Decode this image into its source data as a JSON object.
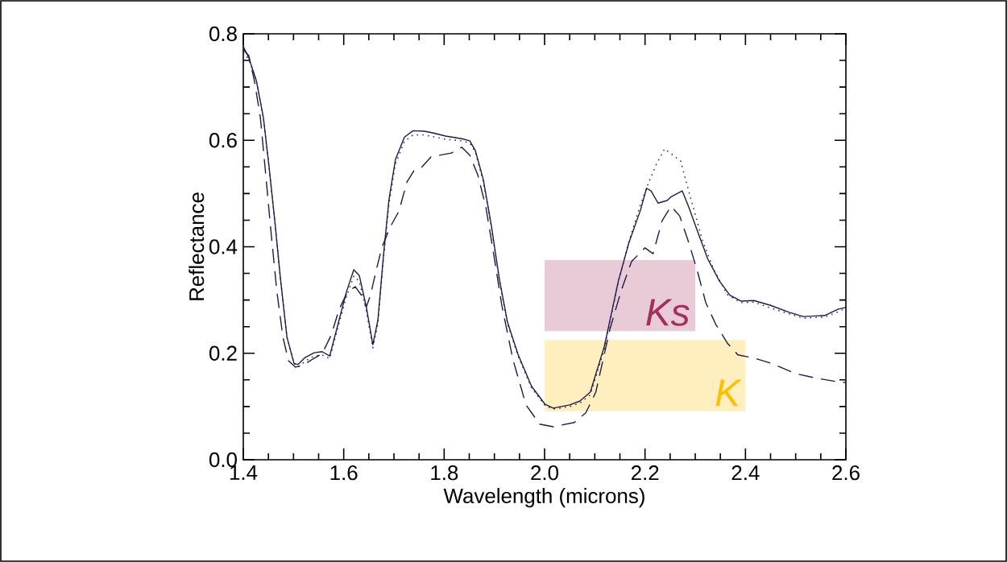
{
  "chart_data": {
    "type": "line",
    "xlabel": "Wavelength (microns)",
    "ylabel": "Reflectance",
    "xlim": [
      1.4,
      2.6
    ],
    "ylim": [
      0,
      0.8
    ],
    "xticks": [
      1.4,
      1.6,
      1.8,
      {
        "value": 2,
        "label": "2.0"
      },
      2.2,
      2.4,
      2.6
    ],
    "yticks": [
      {
        "value": 0,
        "label": "0.0"
      },
      0.2,
      0.4,
      0.6,
      0.8
    ],
    "grid": false,
    "marker": "none",
    "bands": [
      {
        "axis": "x",
        "from": 2.0,
        "to": 2.3,
        "label": "Ks",
        "color": "#e8cbd7"
      },
      {
        "axis": "x",
        "from": 2.0,
        "to": 2.4,
        "label": "K",
        "color": "#ffefbf"
      }
    ],
    "series": [
      {
        "color": "#1c1c4a",
        "line_style": "solid",
        "x": [
          1.4,
          1.411,
          1.426,
          1.44,
          1.451,
          1.463,
          1.474,
          1.487,
          1.501,
          1.509,
          1.523,
          1.541,
          1.557,
          1.572,
          1.589,
          1.605,
          1.62,
          1.631,
          1.645,
          1.658,
          1.668,
          1.679,
          1.69,
          1.703,
          1.721,
          1.738,
          1.761,
          1.777,
          1.803,
          1.835,
          1.851,
          1.862,
          1.878,
          1.894,
          1.91,
          1.926,
          1.947,
          1.974,
          2.001,
          2.017,
          2.05,
          2.07,
          2.091,
          2.119,
          2.147,
          2.168,
          2.191,
          2.203,
          2.212,
          2.226,
          2.244,
          2.252,
          2.274,
          2.287,
          2.305,
          2.325,
          2.348,
          2.369,
          2.391,
          2.417,
          2.45,
          2.487,
          2.515,
          2.558,
          2.585,
          2.6
        ],
        "values": [
          0.776,
          0.755,
          0.712,
          0.643,
          0.553,
          0.446,
          0.34,
          0.23,
          0.181,
          0.179,
          0.192,
          0.201,
          0.203,
          0.195,
          0.256,
          0.314,
          0.357,
          0.346,
          0.287,
          0.216,
          0.262,
          0.382,
          0.488,
          0.564,
          0.606,
          0.618,
          0.617,
          0.614,
          0.608,
          0.603,
          0.599,
          0.581,
          0.526,
          0.44,
          0.339,
          0.259,
          0.198,
          0.138,
          0.104,
          0.097,
          0.103,
          0.11,
          0.127,
          0.213,
          0.336,
          0.408,
          0.469,
          0.51,
          0.505,
          0.482,
          0.487,
          0.494,
          0.505,
          0.475,
          0.428,
          0.377,
          0.336,
          0.309,
          0.298,
          0.299,
          0.29,
          0.277,
          0.269,
          0.271,
          0.283,
          0.286
        ]
      },
      {
        "color": "#1c1c4a",
        "line_style": "dotted",
        "x": [
          1.4,
          1.411,
          1.426,
          1.44,
          1.451,
          1.463,
          1.474,
          1.487,
          1.501,
          1.509,
          1.523,
          1.541,
          1.557,
          1.572,
          1.589,
          1.605,
          1.62,
          1.631,
          1.645,
          1.658,
          1.668,
          1.679,
          1.69,
          1.703,
          1.721,
          1.738,
          1.761,
          1.803,
          1.835,
          1.851,
          1.862,
          1.878,
          1.894,
          1.91,
          1.926,
          1.947,
          1.974,
          2.001,
          2.017,
          2.05,
          2.07,
          2.091,
          2.119,
          2.147,
          2.168,
          2.191,
          2.207,
          2.223,
          2.239,
          2.271,
          2.293,
          2.314,
          2.337,
          2.364,
          2.391,
          2.417,
          2.45,
          2.515,
          2.558,
          2.585,
          2.6
        ],
        "values": [
          0.765,
          0.752,
          0.712,
          0.643,
          0.553,
          0.446,
          0.34,
          0.23,
          0.181,
          0.174,
          0.185,
          0.195,
          0.197,
          0.19,
          0.25,
          0.305,
          0.345,
          0.335,
          0.28,
          0.21,
          0.255,
          0.375,
          0.48,
          0.556,
          0.598,
          0.61,
          0.61,
          0.602,
          0.599,
          0.595,
          0.578,
          0.522,
          0.437,
          0.336,
          0.256,
          0.195,
          0.135,
          0.102,
          0.095,
          0.1,
          0.106,
          0.122,
          0.208,
          0.335,
          0.41,
          0.48,
          0.52,
          0.556,
          0.584,
          0.561,
          0.484,
          0.413,
          0.357,
          0.31,
          0.295,
          0.296,
          0.285,
          0.266,
          0.268,
          0.278,
          0.285
        ]
      },
      {
        "color": "#1c1c4a",
        "line_style": "dashed",
        "x": [
          1.4,
          1.411,
          1.422,
          1.434,
          1.445,
          1.456,
          1.467,
          1.479,
          1.49,
          1.504,
          1.52,
          1.538,
          1.557,
          1.575,
          1.591,
          1.608,
          1.623,
          1.636,
          1.645,
          1.653,
          1.665,
          1.676,
          1.692,
          1.71,
          1.726,
          1.74,
          1.754,
          1.774,
          1.814,
          1.835,
          1.851,
          1.867,
          1.883,
          1.899,
          1.915,
          1.937,
          1.963,
          1.99,
          2.017,
          2.059,
          2.082,
          2.102,
          2.13,
          2.152,
          2.173,
          2.2,
          2.216,
          2.234,
          2.252,
          2.269,
          2.287,
          2.305,
          2.321,
          2.341,
          2.364,
          2.385,
          2.417,
          2.455,
          2.499,
          2.542,
          2.58,
          2.6
        ],
        "values": [
          0.77,
          0.759,
          0.712,
          0.643,
          0.532,
          0.42,
          0.315,
          0.23,
          0.186,
          0.174,
          0.178,
          0.189,
          0.199,
          0.234,
          0.283,
          0.316,
          0.325,
          0.308,
          0.287,
          0.308,
          0.357,
          0.399,
          0.436,
          0.467,
          0.522,
          0.543,
          0.548,
          0.569,
          0.576,
          0.587,
          0.572,
          0.535,
          0.475,
          0.384,
          0.289,
          0.188,
          0.103,
          0.067,
          0.062,
          0.07,
          0.088,
          0.127,
          0.245,
          0.316,
          0.372,
          0.398,
          0.387,
          0.449,
          0.476,
          0.458,
          0.408,
          0.352,
          0.295,
          0.254,
          0.219,
          0.197,
          0.191,
          0.18,
          0.162,
          0.153,
          0.147,
          0.145
        ]
      }
    ]
  }
}
